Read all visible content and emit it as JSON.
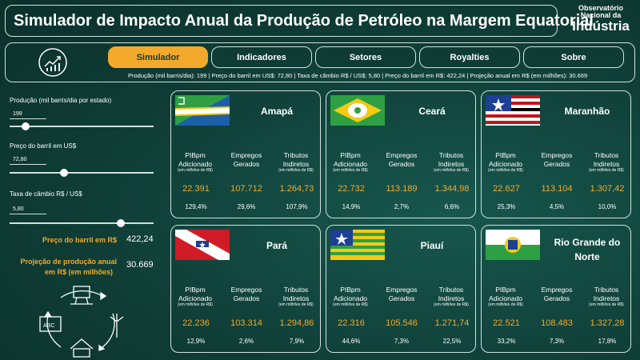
{
  "header": {
    "title": "Simulador de Impacto Anual da Produção de Petróleo na Margem Equatorial",
    "logo": [
      "Observatório",
      "Nacional da",
      "Indústria"
    ]
  },
  "nav": {
    "tabs": [
      "Simulador",
      "Indicadores",
      "Setores",
      "Royalties",
      "Sobre"
    ],
    "active_tab": "Simulador",
    "summary": "Produção (mil barris/dia): 199 | Preço do barril em US$: 72,80 | Taxa de câmbio R$ / US$: 5,80 | Preço do barril em R$: 422,24 | Projeção anual em R$ (em milhões): 30.669"
  },
  "sidebar": {
    "production_label": "Produção (mil barris/dia por estado)",
    "production_value": "199",
    "production_level": 0.11,
    "price_usd_label": "Preço do barril em US$",
    "price_usd_value": "72,80",
    "price_usd_level": 0.38,
    "fx_label": "Taxa de câmbio R$ / US$",
    "fx_value": "5,80",
    "fx_level": 0.77,
    "price_brl_label": "Preço do barril em R$",
    "price_brl_value": "422,24",
    "projection_label_1": "Projeção de produção anual",
    "projection_label_2": "em R$ (em milhões)",
    "projection_value": "30.669"
  },
  "card_labels": {
    "pib": "PIBpm Adicionado",
    "emp": "Empregos Gerados",
    "trib": "Tributos Indiretos",
    "unit": "(em milhões de R$)"
  },
  "colors": {
    "accent": "#f2a92c",
    "background": "#0f3b35",
    "border": "#cfe3dd"
  },
  "states": [
    {
      "name": "Amapá",
      "pib": "22.391",
      "emp": "107.712",
      "trib": "1.264,73",
      "pib_pct": "129,4%",
      "emp_pct": "29,6%",
      "trib_pct": "107,9%",
      "flag": "amapa-flag"
    },
    {
      "name": "Ceará",
      "pib": "22.732",
      "emp": "113.189",
      "trib": "1.344,98",
      "pib_pct": "14,9%",
      "emp_pct": "2,7%",
      "trib_pct": "6,6%",
      "flag": "ceara-flag"
    },
    {
      "name": "Maranhão",
      "pib": "22.627",
      "emp": "113.104",
      "trib": "1.307,42",
      "pib_pct": "25,3%",
      "emp_pct": "4,5%",
      "trib_pct": "10,0%",
      "flag": "maranhao-flag"
    },
    {
      "name": "Pará",
      "pib": "22.236",
      "emp": "103.314",
      "trib": "1.294,86",
      "pib_pct": "12,9%",
      "emp_pct": "2,6%",
      "trib_pct": "7,9%",
      "flag": "para-flag"
    },
    {
      "name": "Piauí",
      "pib": "22.316",
      "emp": "105.546",
      "trib": "1.271,74",
      "pib_pct": "44,6%",
      "emp_pct": "7,3%",
      "trib_pct": "22,5%",
      "flag": "piaui-flag"
    },
    {
      "name": "Rio Grande do Norte",
      "pib": "22.521",
      "emp": "108.483",
      "trib": "1.327,28",
      "pib_pct": "33,2%",
      "emp_pct": "7,3%",
      "trib_pct": "17,8%",
      "flag": "rio-grande-do-norte-flag"
    }
  ]
}
